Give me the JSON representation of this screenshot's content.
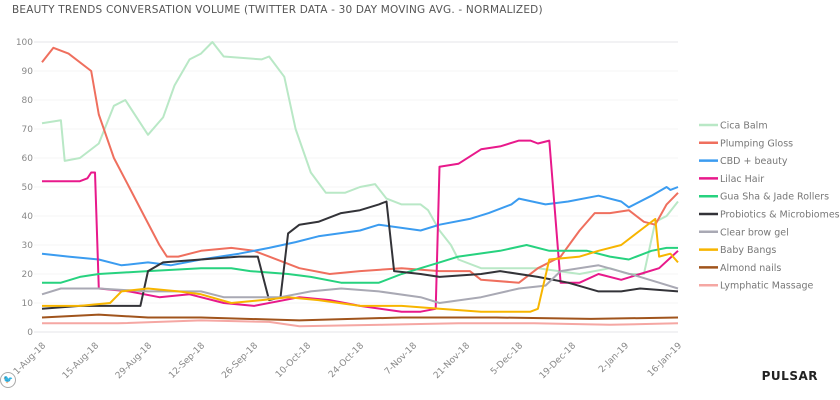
{
  "chart_data": {
    "type": "line",
    "title": "BEAUTY TRENDS CONVERSATION VOLUME (TWITTER DATA - 30 DAY MOVING AVG. - NORMALIZED)",
    "xlabel": "",
    "ylabel": "",
    "ylim": [
      0,
      100
    ],
    "xlim_days": [
      0,
      168
    ],
    "yticks": [
      0,
      10,
      20,
      30,
      40,
      50,
      60,
      70,
      80,
      90,
      100
    ],
    "xticks": [
      {
        "day": 0,
        "label": "1-Aug-18"
      },
      {
        "day": 14,
        "label": "15-Aug-18"
      },
      {
        "day": 28,
        "label": "29-Aug-18"
      },
      {
        "day": 42,
        "label": "12-Sep-18"
      },
      {
        "day": 56,
        "label": "26-Sep-18"
      },
      {
        "day": 70,
        "label": "10-Oct-18"
      },
      {
        "day": 84,
        "label": "24-Oct-18"
      },
      {
        "day": 98,
        "label": "7-Nov-18"
      },
      {
        "day": 112,
        "label": "21-Nov-18"
      },
      {
        "day": 126,
        "label": "5-Dec-18"
      },
      {
        "day": 140,
        "label": "19-Dec-18"
      },
      {
        "day": 154,
        "label": "2-Jan-19"
      },
      {
        "day": 168,
        "label": "16-Jan-19"
      }
    ],
    "legend_position": "right",
    "series": [
      {
        "name": "Cica Balm",
        "color": "#b9e8c6",
        "points": [
          [
            0,
            72
          ],
          [
            5,
            73
          ],
          [
            6,
            59
          ],
          [
            10,
            60
          ],
          [
            15,
            65
          ],
          [
            19,
            78
          ],
          [
            22,
            80
          ],
          [
            26,
            72
          ],
          [
            28,
            68
          ],
          [
            32,
            74
          ],
          [
            35,
            85
          ],
          [
            39,
            94
          ],
          [
            42,
            96
          ],
          [
            45,
            100
          ],
          [
            48,
            95
          ],
          [
            58,
            94
          ],
          [
            60,
            95
          ],
          [
            64,
            88
          ],
          [
            67,
            70
          ],
          [
            71,
            55
          ],
          [
            75,
            48
          ],
          [
            80,
            48
          ],
          [
            84,
            50
          ],
          [
            88,
            51
          ],
          [
            91,
            46
          ],
          [
            95,
            44
          ],
          [
            100,
            44
          ],
          [
            102,
            42
          ],
          [
            105,
            35
          ],
          [
            108,
            30
          ],
          [
            110,
            25
          ],
          [
            116,
            22
          ],
          [
            131,
            22
          ],
          [
            142,
            20
          ],
          [
            150,
            22
          ],
          [
            155,
            20
          ],
          [
            159,
            20
          ],
          [
            162,
            38
          ],
          [
            165,
            40
          ],
          [
            168,
            45
          ]
        ]
      },
      {
        "name": "Plumping Gloss",
        "color": "#ef6f5e",
        "points": [
          [
            0,
            93
          ],
          [
            3,
            98
          ],
          [
            7,
            96
          ],
          [
            13,
            90
          ],
          [
            15,
            75
          ],
          [
            19,
            60
          ],
          [
            23,
            50
          ],
          [
            27,
            40
          ],
          [
            31,
            30
          ],
          [
            33,
            26
          ],
          [
            36,
            26
          ],
          [
            42,
            28
          ],
          [
            50,
            29
          ],
          [
            56,
            28
          ],
          [
            60,
            26
          ],
          [
            68,
            22
          ],
          [
            76,
            20
          ],
          [
            84,
            21
          ],
          [
            95,
            22
          ],
          [
            105,
            21
          ],
          [
            113,
            21
          ],
          [
            116,
            18
          ],
          [
            126,
            17
          ],
          [
            131,
            22
          ],
          [
            137,
            26
          ],
          [
            142,
            35
          ],
          [
            146,
            41
          ],
          [
            150,
            41
          ],
          [
            155,
            42
          ],
          [
            159,
            38
          ],
          [
            162,
            37
          ],
          [
            165,
            44
          ],
          [
            168,
            48
          ]
        ]
      },
      {
        "name": "CBD + beauty",
        "color": "#3b9cf0",
        "points": [
          [
            0,
            27
          ],
          [
            7,
            26
          ],
          [
            15,
            25
          ],
          [
            21,
            23
          ],
          [
            28,
            24
          ],
          [
            34,
            23
          ],
          [
            42,
            25
          ],
          [
            52,
            27
          ],
          [
            60,
            29
          ],
          [
            67,
            31
          ],
          [
            73,
            33
          ],
          [
            84,
            35
          ],
          [
            89,
            37
          ],
          [
            100,
            35
          ],
          [
            105,
            37
          ],
          [
            113,
            39
          ],
          [
            118,
            41
          ],
          [
            124,
            44
          ],
          [
            126,
            46
          ],
          [
            133,
            44
          ],
          [
            139,
            45
          ],
          [
            147,
            47
          ],
          [
            153,
            45
          ],
          [
            155,
            43
          ],
          [
            161,
            47
          ],
          [
            165,
            50
          ],
          [
            166,
            49
          ],
          [
            168,
            50
          ]
        ]
      },
      {
        "name": "Lilac Hair",
        "color": "#e8198b",
        "points": [
          [
            0,
            52
          ],
          [
            10,
            52
          ],
          [
            12,
            53
          ],
          [
            13,
            55
          ],
          [
            14,
            55
          ],
          [
            15,
            15
          ],
          [
            23,
            14
          ],
          [
            31,
            12
          ],
          [
            39,
            13
          ],
          [
            48,
            10
          ],
          [
            56,
            9
          ],
          [
            68,
            12
          ],
          [
            76,
            11
          ],
          [
            84,
            9
          ],
          [
            95,
            7
          ],
          [
            100,
            7
          ],
          [
            104,
            8
          ],
          [
            105,
            57
          ],
          [
            110,
            58
          ],
          [
            116,
            63
          ],
          [
            121,
            64
          ],
          [
            126,
            66
          ],
          [
            129,
            66
          ],
          [
            131,
            65
          ],
          [
            134,
            66
          ],
          [
            137,
            17
          ],
          [
            142,
            17
          ],
          [
            147,
            20
          ],
          [
            153,
            18
          ],
          [
            158,
            20
          ],
          [
            163,
            22
          ],
          [
            168,
            28
          ]
        ]
      },
      {
        "name": "Gua Sha & Jade Rollers",
        "color": "#27d27f",
        "points": [
          [
            0,
            17
          ],
          [
            5,
            17
          ],
          [
            10,
            19
          ],
          [
            15,
            20
          ],
          [
            28,
            21
          ],
          [
            42,
            22
          ],
          [
            50,
            22
          ],
          [
            55,
            21
          ],
          [
            65,
            20
          ],
          [
            71,
            19
          ],
          [
            79,
            17
          ],
          [
            89,
            17
          ],
          [
            95,
            20
          ],
          [
            100,
            22
          ],
          [
            105,
            24
          ],
          [
            110,
            26
          ],
          [
            121,
            28
          ],
          [
            128,
            30
          ],
          [
            134,
            28
          ],
          [
            144,
            28
          ],
          [
            150,
            26
          ],
          [
            155,
            25
          ],
          [
            161,
            28
          ],
          [
            165,
            29
          ],
          [
            168,
            29
          ]
        ]
      },
      {
        "name": "Probiotics & Microbiomes",
        "color": "#333338",
        "points": [
          [
            0,
            8
          ],
          [
            10,
            9
          ],
          [
            23,
            9
          ],
          [
            26,
            9
          ],
          [
            28,
            21
          ],
          [
            32,
            24
          ],
          [
            42,
            25
          ],
          [
            52,
            26
          ],
          [
            57,
            26
          ],
          [
            60,
            11
          ],
          [
            63,
            12
          ],
          [
            65,
            34
          ],
          [
            68,
            37
          ],
          [
            73,
            38
          ],
          [
            79,
            41
          ],
          [
            84,
            42
          ],
          [
            89,
            44
          ],
          [
            91,
            45
          ],
          [
            93,
            21
          ],
          [
            100,
            20
          ],
          [
            105,
            19
          ],
          [
            116,
            20
          ],
          [
            121,
            21
          ],
          [
            131,
            19
          ],
          [
            139,
            17
          ],
          [
            147,
            14
          ],
          [
            153,
            14
          ],
          [
            158,
            15
          ],
          [
            168,
            14
          ]
        ]
      },
      {
        "name": "Clear brow gel",
        "color": "#a9a9b4",
        "points": [
          [
            0,
            13
          ],
          [
            5,
            15
          ],
          [
            15,
            15
          ],
          [
            28,
            14
          ],
          [
            42,
            14
          ],
          [
            48,
            12
          ],
          [
            63,
            12
          ],
          [
            71,
            14
          ],
          [
            79,
            15
          ],
          [
            89,
            14
          ],
          [
            100,
            12
          ],
          [
            105,
            10
          ],
          [
            116,
            12
          ],
          [
            126,
            15
          ],
          [
            133,
            16
          ],
          [
            137,
            21
          ],
          [
            147,
            23
          ],
          [
            158,
            19
          ],
          [
            163,
            17
          ],
          [
            168,
            15
          ]
        ]
      },
      {
        "name": "Baby Bangs",
        "color": "#f7b500",
        "points": [
          [
            0,
            9
          ],
          [
            10,
            9
          ],
          [
            18,
            10
          ],
          [
            21,
            14
          ],
          [
            28,
            15
          ],
          [
            36,
            14
          ],
          [
            42,
            13
          ],
          [
            50,
            10
          ],
          [
            58,
            11
          ],
          [
            65,
            12
          ],
          [
            73,
            11
          ],
          [
            84,
            9
          ],
          [
            95,
            9
          ],
          [
            105,
            8
          ],
          [
            116,
            7
          ],
          [
            129,
            7
          ],
          [
            131,
            8
          ],
          [
            134,
            25
          ],
          [
            142,
            26
          ],
          [
            147,
            28
          ],
          [
            153,
            30
          ],
          [
            158,
            35
          ],
          [
            162,
            39
          ],
          [
            163,
            26
          ],
          [
            166,
            27
          ],
          [
            168,
            24
          ]
        ]
      },
      {
        "name": "Almond nails",
        "color": "#a0541c",
        "points": [
          [
            0,
            5
          ],
          [
            15,
            6
          ],
          [
            28,
            5
          ],
          [
            42,
            5
          ],
          [
            68,
            4
          ],
          [
            95,
            5
          ],
          [
            120,
            5
          ],
          [
            145,
            4.5
          ],
          [
            168,
            5
          ]
        ]
      },
      {
        "name": "Lymphatic Massage",
        "color": "#f5a7a3",
        "points": [
          [
            0,
            3
          ],
          [
            20,
            3
          ],
          [
            42,
            4
          ],
          [
            60,
            3.5
          ],
          [
            68,
            2
          ],
          [
            90,
            2.5
          ],
          [
            110,
            3
          ],
          [
            130,
            3
          ],
          [
            150,
            2.5
          ],
          [
            168,
            3
          ]
        ]
      }
    ]
  },
  "footer": {
    "brand": "PULSAR",
    "social_icon": "twitter-icon"
  }
}
